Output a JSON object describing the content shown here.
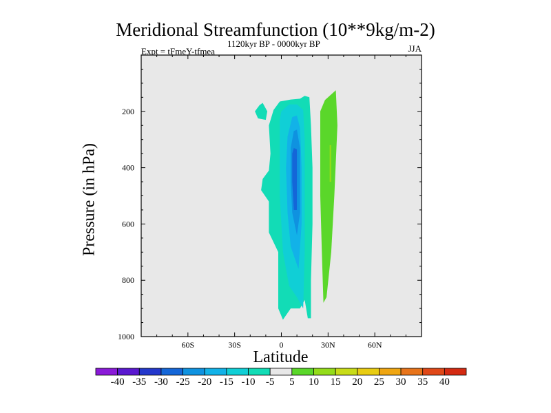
{
  "chart_data": {
    "type": "contour",
    "title": "Meridional Streamfunction (10**9kg/m-2)",
    "left_label": "Expt = tFmeY-tfmea",
    "center_label": "1120kyr BP - 0000kyr BP",
    "right_label": "JJA",
    "xlabel": "Latitude",
    "ylabel": "Pressure (in hPa)",
    "xlim": [
      -90,
      90
    ],
    "ylim": [
      1000,
      0
    ],
    "x_ticks": [
      {
        "value": -60,
        "label": "60S"
      },
      {
        "value": -30,
        "label": "30S"
      },
      {
        "value": 0,
        "label": "0"
      },
      {
        "value": 30,
        "label": "30N"
      },
      {
        "value": 60,
        "label": "60N"
      }
    ],
    "y_ticks": [
      {
        "value": 200,
        "label": "200"
      },
      {
        "value": 400,
        "label": "400"
      },
      {
        "value": 600,
        "label": "600"
      },
      {
        "value": 800,
        "label": "800"
      },
      {
        "value": 1000,
        "label": "1000"
      }
    ],
    "levels": [
      -40,
      -35,
      -30,
      -25,
      -20,
      -15,
      -10,
      -5,
      5,
      10,
      15,
      20,
      25,
      30,
      35,
      40
    ],
    "level_labels": [
      "-40",
      "-35",
      "-30",
      "-25",
      "-20",
      "-15",
      "-10",
      "-5",
      "5",
      "10",
      "15",
      "20",
      "25",
      "30",
      "35",
      "40"
    ],
    "colors": [
      "#8a1ad8",
      "#5a18d0",
      "#2438cc",
      "#1466d8",
      "#0f92e0",
      "#12b2e8",
      "#10cfd6",
      "#12dcb6",
      "#e8e8e8",
      "#5ad72a",
      "#94dc1a",
      "#c8dc18",
      "#e8cc12",
      "#f0a612",
      "#e8741a",
      "#e04818",
      "#d42a12"
    ],
    "background_color": "#e8e8e8",
    "regions": [
      {
        "name": "region-shallow-nh-cell",
        "color": "#12dcb6",
        "points": [
          [
            -12,
            170
          ],
          [
            -9,
            200
          ],
          [
            -10,
            230
          ],
          [
            -15,
            225
          ],
          [
            -17,
            200
          ],
          [
            -14,
            178
          ]
        ]
      },
      {
        "name": "region-tropical-outer",
        "color": "#12dcb6",
        "points": [
          [
            -8,
            250
          ],
          [
            -5,
            195
          ],
          [
            -1,
            165
          ],
          [
            6,
            158
          ],
          [
            12,
            155
          ],
          [
            15,
            145
          ],
          [
            18,
            150
          ],
          [
            19,
            250
          ],
          [
            20,
            400
          ],
          [
            20,
            600
          ],
          [
            19,
            800
          ],
          [
            19,
            935
          ],
          [
            17,
            935
          ],
          [
            15,
            870
          ],
          [
            12,
            900
          ],
          [
            6,
            900
          ],
          [
            1,
            940
          ],
          [
            -2,
            900
          ],
          [
            -2,
            700
          ],
          [
            -8,
            630
          ],
          [
            -8,
            520
          ],
          [
            -13,
            480
          ],
          [
            -12,
            440
          ],
          [
            -8,
            410
          ],
          [
            -7,
            350
          ]
        ]
      },
      {
        "name": "region-tropical-m10",
        "color": "#10cfd6",
        "points": [
          [
            -1,
            230
          ],
          [
            0,
            200
          ],
          [
            5,
            175
          ],
          [
            10,
            175
          ],
          [
            14,
            195
          ],
          [
            15,
            300
          ],
          [
            15,
            700
          ],
          [
            14,
            900
          ],
          [
            10,
            860
          ],
          [
            5,
            820
          ],
          [
            1,
            700
          ],
          [
            -1,
            500
          ]
        ]
      },
      {
        "name": "region-tropical-m15",
        "color": "#12b2e8",
        "points": [
          [
            4,
            290
          ],
          [
            7,
            220
          ],
          [
            10,
            215
          ],
          [
            12,
            260
          ],
          [
            13,
            400
          ],
          [
            13,
            600
          ],
          [
            11,
            760
          ],
          [
            6,
            680
          ],
          [
            4,
            560
          ],
          [
            3,
            400
          ]
        ]
      },
      {
        "name": "region-tropical-m20",
        "color": "#0f92e0",
        "points": [
          [
            6,
            330
          ],
          [
            8,
            270
          ],
          [
            10,
            265
          ],
          [
            12,
            330
          ],
          [
            12,
            560
          ],
          [
            10,
            640
          ],
          [
            7,
            560
          ],
          [
            6,
            450
          ]
        ]
      },
      {
        "name": "region-tropical-m25",
        "color": "#1466d8",
        "points": [
          [
            7,
            350
          ],
          [
            8,
            330
          ],
          [
            10,
            335
          ],
          [
            10,
            550
          ],
          [
            8,
            550
          ],
          [
            7,
            450
          ]
        ]
      },
      {
        "name": "region-nh-positive-cell",
        "color": "#5ad72a",
        "points": [
          [
            25,
            200
          ],
          [
            28,
            160
          ],
          [
            35,
            125
          ],
          [
            36,
            250
          ],
          [
            34,
            500
          ],
          [
            32,
            700
          ],
          [
            29,
            860
          ],
          [
            27,
            880
          ],
          [
            26,
            700
          ],
          [
            25,
            500
          ]
        ]
      },
      {
        "name": "region-nh-positive-core",
        "color": "#94dc1a",
        "points": [
          [
            31,
            320
          ],
          [
            32,
            320
          ],
          [
            32,
            450
          ],
          [
            31,
            450
          ]
        ]
      }
    ]
  }
}
